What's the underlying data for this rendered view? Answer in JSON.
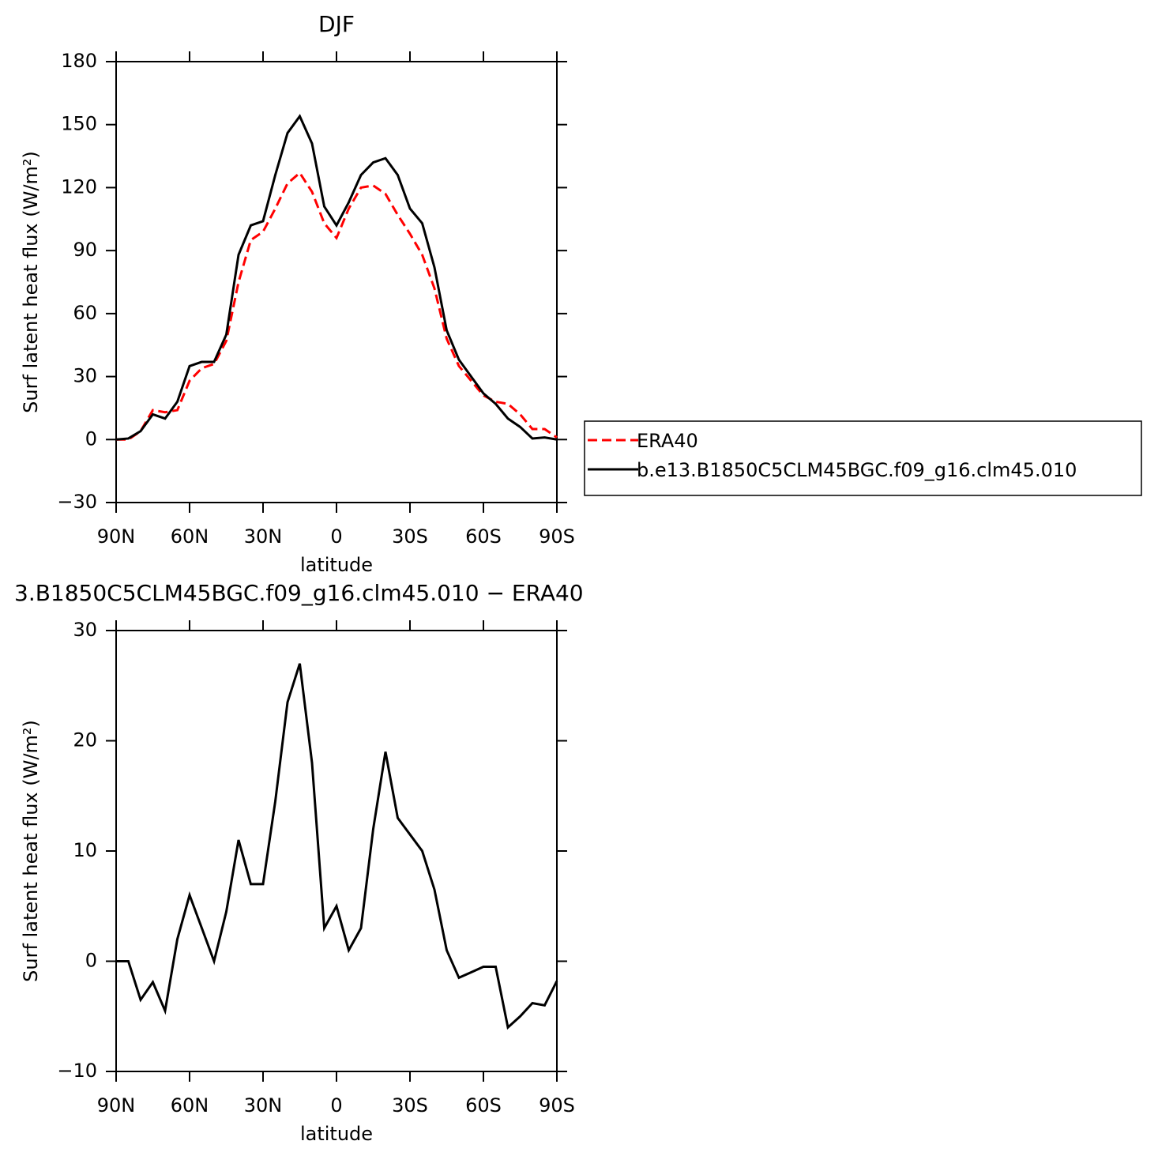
{
  "chart_data": [
    {
      "type": "line",
      "title": "DJF",
      "xlabel": "latitude",
      "ylabel": "Surf latent heat flux (W/m²)",
      "x": [
        90,
        85,
        80,
        75,
        70,
        65,
        60,
        55,
        50,
        45,
        40,
        35,
        30,
        25,
        20,
        15,
        10,
        5,
        0,
        -5,
        -10,
        -15,
        -20,
        -25,
        -30,
        -35,
        -40,
        -45,
        -50,
        -55,
        -60,
        -65,
        -70,
        -75,
        -80,
        -85,
        -90
      ],
      "xlim": [
        90,
        -90
      ],
      "xticks": [
        {
          "value": 90,
          "label": "90N"
        },
        {
          "value": 60,
          "label": "60N"
        },
        {
          "value": 30,
          "label": "30N"
        },
        0,
        {
          "value": -30,
          "label": "30S"
        },
        {
          "value": -60,
          "label": "60S"
        },
        {
          "value": -90,
          "label": "90S"
        }
      ],
      "ylim": [
        -30,
        180
      ],
      "yticks": [
        {
          "value": -30,
          "label": "−30"
        },
        0,
        30,
        60,
        90,
        120,
        150,
        180
      ],
      "legend": "right",
      "series": [
        {
          "name": "ERA40",
          "color": "#ff0000",
          "style": "dashed",
          "values": [
            0,
            0,
            4,
            14,
            13,
            14,
            28,
            34,
            36,
            47,
            75,
            95,
            99,
            110,
            122,
            127,
            118,
            103,
            96,
            110,
            120,
            121,
            117,
            107,
            98,
            88,
            72,
            48,
            35,
            28,
            21,
            18,
            17,
            12,
            5,
            5,
            1
          ]
        },
        {
          "name": "b.e13.B1850C5CLM45BGC.f09_g16.clm45.010",
          "color": "#000000",
          "style": "solid",
          "values": [
            0,
            0.5,
            4,
            12,
            10,
            18,
            35,
            37,
            37,
            50,
            88,
            102,
            104,
            126,
            146,
            154,
            141,
            111,
            102,
            113,
            126,
            132,
            134,
            126,
            110,
            103,
            82,
            52,
            38,
            30,
            22,
            17,
            10,
            6,
            0.5,
            1,
            0
          ]
        }
      ]
    },
    {
      "type": "line",
      "title": "3.B1850C5CLM45BGC.f09_g16.clm45.010 − ERA40",
      "xlabel": "latitude",
      "ylabel": "Surf latent heat flux (W/m²)",
      "x": [
        90,
        85,
        80,
        75,
        70,
        65,
        60,
        55,
        50,
        45,
        40,
        35,
        30,
        25,
        20,
        15,
        10,
        5,
        0,
        -5,
        -10,
        -15,
        -20,
        -25,
        -30,
        -35,
        -40,
        -45,
        -50,
        -55,
        -60,
        -65,
        -70,
        -75,
        -80,
        -85,
        -90
      ],
      "xlim": [
        90,
        -90
      ],
      "xticks": [
        {
          "value": 90,
          "label": "90N"
        },
        {
          "value": 60,
          "label": "60N"
        },
        {
          "value": 30,
          "label": "30N"
        },
        0,
        {
          "value": -30,
          "label": "30S"
        },
        {
          "value": -60,
          "label": "60S"
        },
        {
          "value": -90,
          "label": "90S"
        }
      ],
      "ylim": [
        -10,
        30
      ],
      "yticks": [
        {
          "value": -10,
          "label": "−10"
        },
        0,
        10,
        20,
        30
      ],
      "series": [
        {
          "color": "#000000",
          "style": "solid",
          "values": [
            0,
            0,
            -3.5,
            -1.9,
            -4.5,
            2,
            6,
            3,
            0,
            4.5,
            11,
            7,
            7,
            14.5,
            23.5,
            27,
            18,
            3,
            5,
            1,
            3,
            12,
            19,
            13,
            11.5,
            10,
            6.5,
            1,
            -1.5,
            -1,
            -0.5,
            -0.5,
            -6,
            -5,
            -3.8,
            -4,
            -1.8
          ]
        }
      ]
    }
  ]
}
